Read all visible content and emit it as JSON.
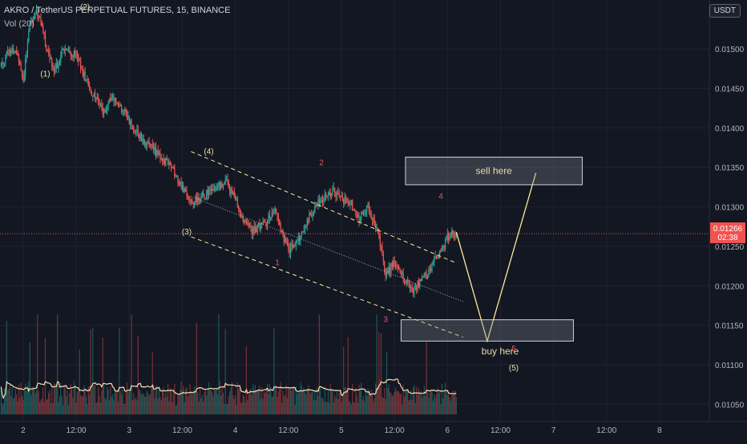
{
  "header": {
    "symbol_title": "AKRO / TetherUS PERPETUAL FUTURES, 15, BINANCE",
    "volume_indicator": "Vol (20)",
    "currency_badge": "USDT"
  },
  "price_label": {
    "price": "0.01266",
    "countdown": "02:38"
  },
  "colors": {
    "background": "#131722",
    "up": "#26a69a",
    "down": "#ef5350",
    "channel": "#ffeb99",
    "wave_primary": "#f0e0a0",
    "wave_secondary": "#e05a5a",
    "volume_ma": "#f5deb3"
  },
  "chart_data": {
    "type": "candlestick",
    "title": "AKRO / TetherUS PERPETUAL FUTURES, 15, BINANCE",
    "xlabel": "",
    "ylabel": "",
    "ylim": [
      0.01028,
      0.01562
    ],
    "y_ticks": [
      "0.01500",
      "0.01450",
      "0.01400",
      "0.01350",
      "0.01300",
      "0.01250",
      "0.01200",
      "0.01150",
      "0.01100",
      "0.01050"
    ],
    "x_ticks": [
      "2",
      "12:00",
      "3",
      "12:00",
      "4",
      "12:00",
      "5",
      "12:00",
      "6",
      "12:00",
      "7",
      "12:00",
      "8"
    ],
    "x_tick_times": [
      0,
      12,
      24,
      36,
      48,
      60,
      72,
      84,
      96,
      108,
      120,
      132,
      144
    ],
    "x_range": [
      -5.25,
      155.25
    ],
    "trend_path": [
      [
        -5,
        0.0148
      ],
      [
        -3,
        0.015
      ],
      [
        -1,
        0.0149
      ],
      [
        0,
        0.0146
      ],
      [
        1.5,
        0.0153
      ],
      [
        3,
        0.0155
      ],
      [
        5,
        0.0151
      ],
      [
        7,
        0.0147
      ],
      [
        9,
        0.015
      ],
      [
        12,
        0.0149
      ],
      [
        15,
        0.0145
      ],
      [
        18,
        0.0142
      ],
      [
        20,
        0.0144
      ],
      [
        23,
        0.0142
      ],
      [
        25,
        0.014
      ],
      [
        28,
        0.0138
      ],
      [
        31,
        0.01365
      ],
      [
        34,
        0.01345
      ],
      [
        36,
        0.01325
      ],
      [
        38,
        0.01305
      ],
      [
        40,
        0.0131
      ],
      [
        42,
        0.0132
      ],
      [
        44,
        0.01325
      ],
      [
        46,
        0.0133
      ],
      [
        48,
        0.0131
      ],
      [
        50,
        0.0128
      ],
      [
        52,
        0.0127
      ],
      [
        55,
        0.0128
      ],
      [
        57,
        0.013
      ],
      [
        58,
        0.01275
      ],
      [
        60,
        0.01245
      ],
      [
        62,
        0.01255
      ],
      [
        64,
        0.0128
      ],
      [
        66,
        0.013
      ],
      [
        68,
        0.0131
      ],
      [
        70,
        0.0132
      ],
      [
        72,
        0.0131
      ],
      [
        74,
        0.01305
      ],
      [
        76,
        0.01285
      ],
      [
        78,
        0.013
      ],
      [
        80,
        0.0127
      ],
      [
        81,
        0.0125
      ],
      [
        82,
        0.01215
      ],
      [
        84,
        0.0123
      ],
      [
        86,
        0.0121
      ],
      [
        88,
        0.01195
      ],
      [
        90,
        0.01205
      ],
      [
        92,
        0.0122
      ],
      [
        94,
        0.0124
      ],
      [
        96,
        0.0126
      ],
      [
        97,
        0.01268
      ],
      [
        98,
        0.01266
      ]
    ],
    "last_price": 0.01266,
    "annotations": {
      "channel_upper": [
        [
          38,
          0.0137
        ],
        [
          97.5,
          0.0123
        ]
      ],
      "channel_mid": [
        [
          38,
          0.01313
        ],
        [
          99.5,
          0.0118
        ]
      ],
      "channel_lower": [
        [
          38,
          0.01262
        ],
        [
          99.5,
          0.01135
        ]
      ],
      "projection": [
        [
          98,
          0.01268
        ],
        [
          105,
          0.0113
        ],
        [
          116,
          0.01343
        ]
      ],
      "zones": [
        {
          "label": "sell here",
          "t0": 86.5,
          "t1": 126.5,
          "y0": 0.01328,
          "y1": 0.01363
        },
        {
          "label": "buy here",
          "t0": 85.5,
          "t1": 124.5,
          "y0": 0.0113,
          "y1": 0.01157
        }
      ],
      "wave_labels_primary": [
        {
          "text": "(1)",
          "t": 5,
          "y": 0.01465
        },
        {
          "text": "(2)",
          "t": 14,
          "y": 0.0155
        },
        {
          "text": "(3)",
          "t": 37,
          "y": 0.01265
        },
        {
          "text": "(4)",
          "t": 42,
          "y": 0.01367
        },
        {
          "text": "(5)",
          "t": 111,
          "y": 0.01093
        }
      ],
      "wave_labels_secondary": [
        {
          "text": "1",
          "t": 57.5,
          "y": 0.01226
        },
        {
          "text": "2",
          "t": 67.5,
          "y": 0.01353
        },
        {
          "text": "3",
          "t": 82,
          "y": 0.01154
        },
        {
          "text": "4",
          "t": 94.5,
          "y": 0.0131
        },
        {
          "text": "5",
          "t": 111,
          "y": 0.01117
        }
      ]
    },
    "volume": {
      "label": "Vol (20)",
      "t_start": -5,
      "t_end": 98
    }
  }
}
